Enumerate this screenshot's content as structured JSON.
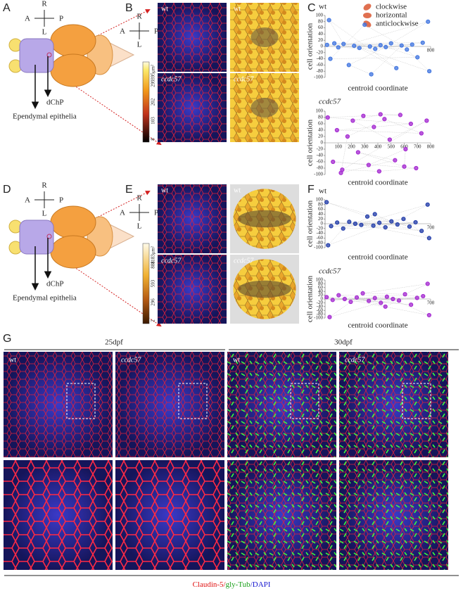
{
  "panel_a": {
    "label": "A",
    "compass": {
      "r": "R",
      "a": "A",
      "p": "P",
      "l": "L"
    },
    "dchp": "dChP",
    "epithelia": "Ependymal epithelia"
  },
  "panel_b": {
    "label": "B",
    "compass": {
      "r": "R",
      "a": "A",
      "p": "P",
      "l": "L"
    },
    "images": [
      "wt",
      "wt",
      "ccdc57",
      "ccdc57"
    ],
    "colorbar": [
      "8",
      "103",
      "202",
      "299",
      "395μm²"
    ]
  },
  "panel_c": {
    "label": "C",
    "legend": [
      "clockwise",
      "horizontal",
      "anticlockwise"
    ],
    "plots": [
      {
        "genotype": "wt",
        "ylabel": "cell orientation",
        "xlabel": "centroid coordinate",
        "xlim": [
          0,
          800
        ],
        "ylim": [
          -100,
          100
        ],
        "yticks": [
          100,
          80,
          60,
          40,
          20,
          0,
          -20,
          -40,
          -60,
          -80,
          -100
        ],
        "xticks": [
          800
        ],
        "color": "#3f74e0",
        "x": [
          15,
          40,
          70,
          100,
          140,
          180,
          220,
          260,
          300,
          340,
          380,
          420,
          460,
          500,
          540,
          580,
          620,
          660,
          700,
          740,
          780,
          30,
          350,
          790
        ],
        "values": [
          5,
          -40,
          10,
          -3,
          8,
          -60,
          2,
          -5,
          70,
          0,
          -8,
          4,
          -2,
          10,
          -70,
          3,
          -10,
          6,
          -35,
          12,
          80,
          85,
          -90,
          -80
        ]
      },
      {
        "genotype": "ccdc57",
        "ylabel": "cell orientation",
        "xlabel": "centroid coordinate",
        "xlim": [
          0,
          800
        ],
        "ylim": [
          -100,
          100
        ],
        "yticks": [
          100,
          80,
          60,
          40,
          20,
          0,
          -20,
          -40,
          -60,
          -80,
          -100
        ],
        "xticks": [
          100,
          200,
          300,
          400,
          500,
          600,
          700,
          800
        ],
        "color": "#a325d0",
        "x": [
          20,
          60,
          90,
          130,
          170,
          210,
          250,
          290,
          330,
          370,
          410,
          450,
          490,
          530,
          570,
          610,
          650,
          690,
          730,
          770,
          120,
          420,
          600
        ],
        "values": [
          80,
          -60,
          40,
          -85,
          20,
          70,
          -30,
          85,
          -70,
          50,
          -90,
          75,
          10,
          -55,
          88,
          -20,
          60,
          -80,
          30,
          70,
          -95,
          90,
          -75
        ]
      }
    ]
  },
  "panel_d": {
    "label": "D",
    "compass": {
      "r": "R",
      "a": "A",
      "p": "P",
      "l": "L"
    },
    "dchp": "dChP",
    "epithelia": "Ependymal epithelia"
  },
  "panel_e": {
    "label": "E",
    "compass": {
      "r": "R",
      "a": "A",
      "p": "P",
      "l": "L"
    },
    "images": [
      "wt",
      "wt",
      "ccdc57",
      "ccdc57"
    ],
    "colorbar": [
      "2",
      "296",
      "593",
      "888",
      "1183μm²"
    ]
  },
  "panel_f": {
    "label": "F",
    "plots": [
      {
        "genotype": "wt",
        "ylabel": "cell orientation",
        "xlabel": "centroid coordinate",
        "xlim": [
          0,
          700
        ],
        "ylim": [
          -100,
          100
        ],
        "yticks": [
          100,
          80,
          60,
          40,
          20,
          0,
          -20,
          -40,
          -60,
          -80,
          -100
        ],
        "xticks": [
          700
        ],
        "color": "#1f3aa8",
        "x": [
          10,
          40,
          80,
          120,
          160,
          200,
          240,
          280,
          320,
          360,
          400,
          440,
          480,
          520,
          560,
          600,
          640,
          680,
          20,
          330,
          690
        ],
        "values": [
          90,
          -10,
          5,
          -20,
          8,
          0,
          -5,
          30,
          -8,
          4,
          -15,
          10,
          -3,
          20,
          -12,
          6,
          -30,
          80,
          -90,
          40,
          -60
        ]
      },
      {
        "genotype": "ccdc57",
        "ylabel": "cell orientation",
        "xlabel": "centroid coordinate",
        "xlim": [
          0,
          700
        ],
        "ylim": [
          -100,
          100
        ],
        "yticks": [
          100,
          80,
          60,
          40,
          20,
          0,
          -20,
          -40,
          -60,
          -80,
          -100
        ],
        "xticks": [
          700
        ],
        "color": "#a325d0",
        "x": [
          10,
          50,
          90,
          130,
          170,
          210,
          250,
          290,
          330,
          370,
          410,
          450,
          490,
          530,
          570,
          610,
          650,
          690,
          30,
          400,
          680
        ],
        "values": [
          10,
          -5,
          20,
          0,
          -15,
          8,
          30,
          -10,
          5,
          -20,
          12,
          0,
          -8,
          25,
          -30,
          6,
          15,
          -85,
          -95,
          -40,
          80
        ]
      }
    ]
  },
  "panel_g": {
    "label": "G",
    "groups": [
      "25dpf",
      "30dpf"
    ],
    "images": [
      "wt",
      "ccdc57",
      "wt",
      "ccdc57"
    ],
    "stain": [
      "Claudin-5/",
      "gly-Tub",
      "/DAPI"
    ]
  }
}
